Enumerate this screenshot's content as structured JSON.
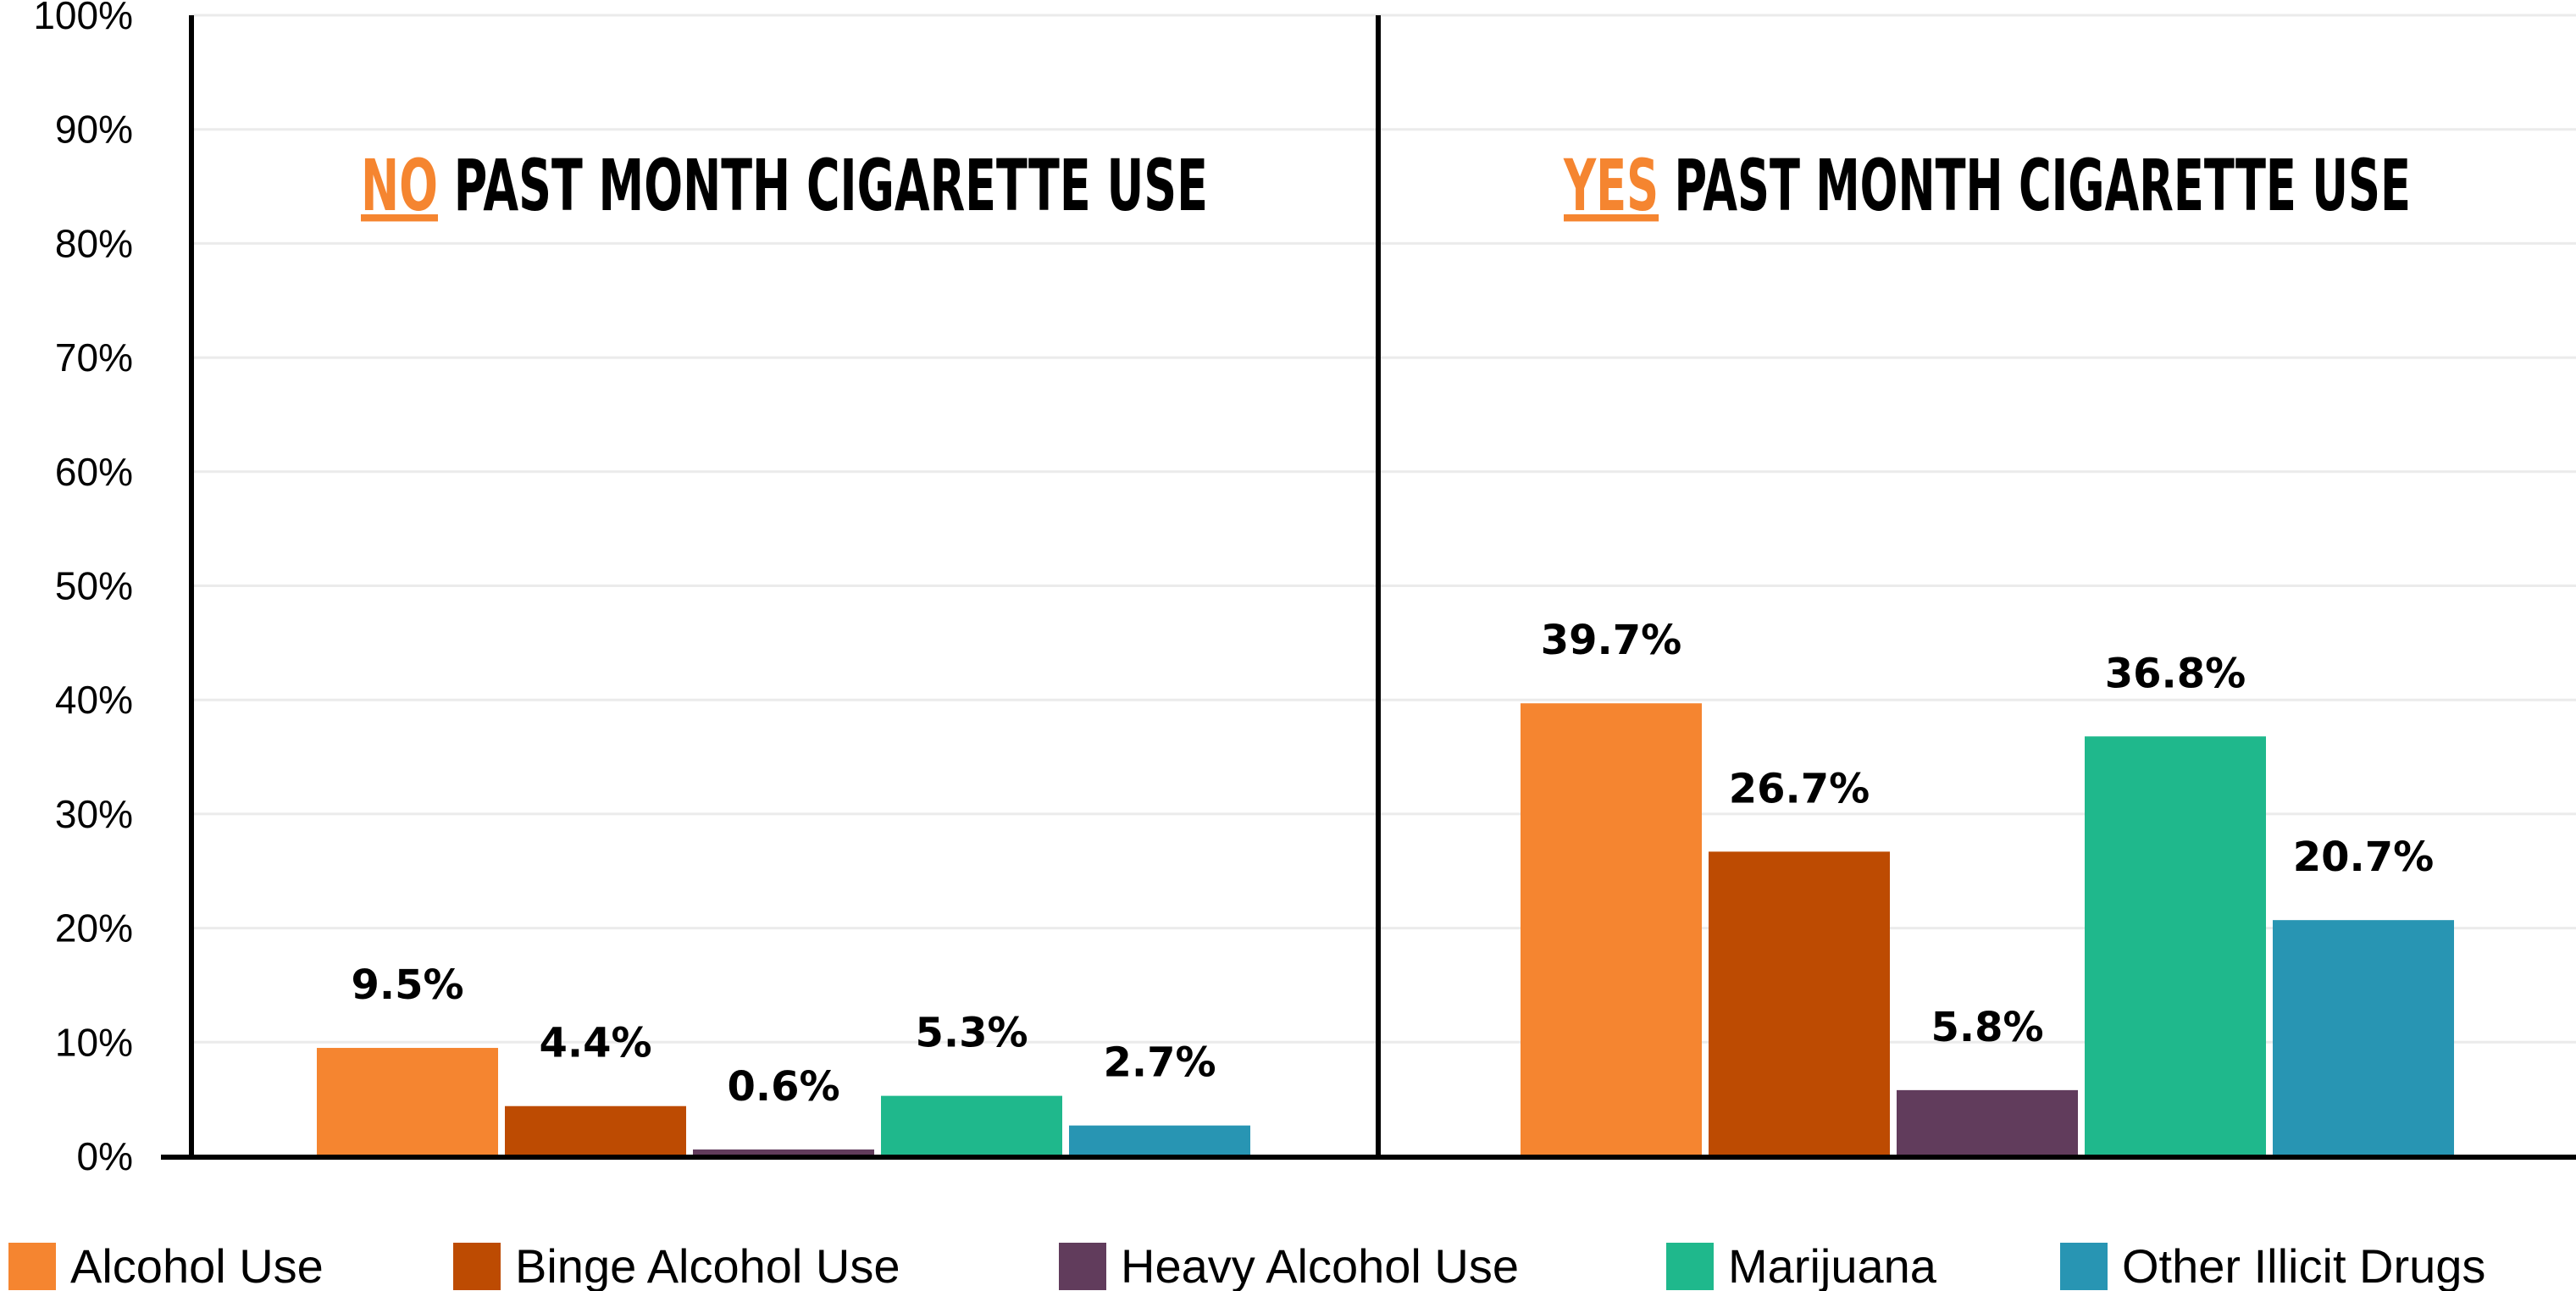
{
  "chart_data": {
    "type": "bar",
    "ylim": [
      0,
      100
    ],
    "yticks": [
      "0%",
      "10%",
      "20%",
      "30%",
      "40%",
      "50%",
      "60%",
      "70%",
      "80%",
      "90%",
      "100%"
    ],
    "grid": true,
    "legend_position": "bottom",
    "panels": [
      {
        "accent": "NO",
        "title": "PAST MONTH CIGARETTE USE",
        "values": [
          9.5,
          4.4,
          0.6,
          5.3,
          2.7
        ],
        "labels": [
          "9.5%",
          "4.4%",
          "0.6%",
          "5.3%",
          "2.7%"
        ]
      },
      {
        "accent": "YES",
        "title": "PAST MONTH CIGARETTE USE",
        "values": [
          39.7,
          26.7,
          5.8,
          36.8,
          20.7
        ],
        "labels": [
          "39.7%",
          "26.7%",
          "5.8%",
          "36.8%",
          "20.7%"
        ]
      }
    ],
    "series": [
      {
        "name": "Alcohol Use",
        "color": "#F58530"
      },
      {
        "name": "Binge Alcohol Use",
        "color": "#BD4B02"
      },
      {
        "name": "Heavy Alcohol Use",
        "color": "#613C5C"
      },
      {
        "name": "Marijuana",
        "color": "#1FB88C"
      },
      {
        "name": "Other Illicit Drugs",
        "color": "#2895B3"
      }
    ]
  }
}
